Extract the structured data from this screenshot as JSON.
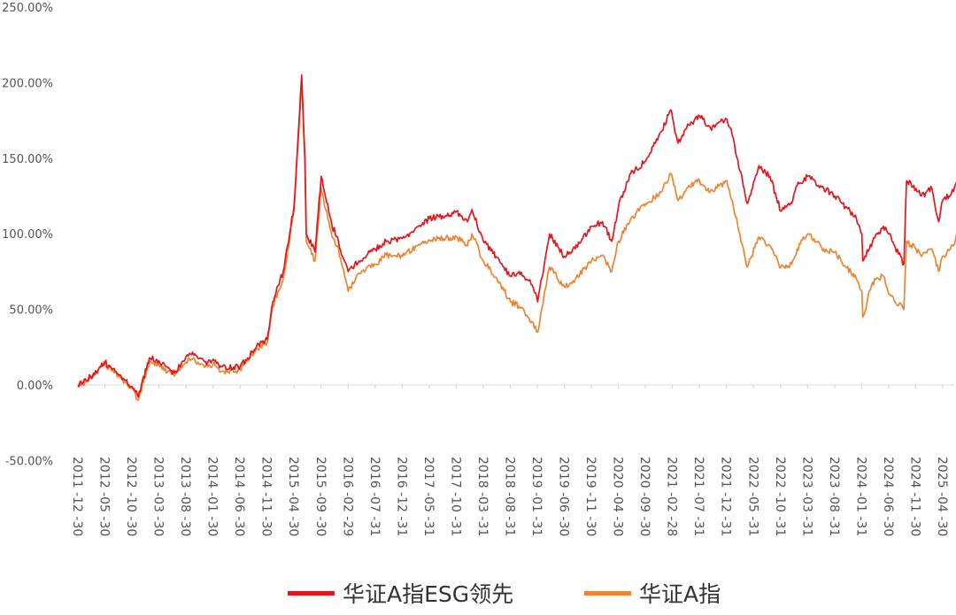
{
  "chart_data": {
    "type": "line",
    "title": "",
    "xlabel": "",
    "ylabel": "",
    "ylim": [
      -50,
      250
    ],
    "yticks": [
      -50,
      0,
      50,
      100,
      150,
      200,
      250
    ],
    "ytick_labels": [
      "-50.00%",
      "0.00%",
      "50.00%",
      "100.00%",
      "150.00%",
      "200.00%",
      "250.00%"
    ],
    "xtick_labels": [
      "2011 -12 -30",
      "2012 -05 -30",
      "2012 -10 -30",
      "2013 -03 -30",
      "2013 -08 -30",
      "2014 -01 -30",
      "2014 -06 -30",
      "2014 -11 -30",
      "2015 -04 -30",
      "2015 -09 -30",
      "2016 -02 -29",
      "2016 -07 -31",
      "2016 -12 -31",
      "2017 -05 -31",
      "2017 -10 -31",
      "2018 -03 -31",
      "2018 -08 -31",
      "2019 -01 -31",
      "2019 -06 -30",
      "2019 -11 -30",
      "2020 -04 -30",
      "2020 -09 -30",
      "2021 -02 -28",
      "2021 -07 -31",
      "2021 -12 -31",
      "2022 -05 -31",
      "2022 -10 -31",
      "2023 -03 -31",
      "2023 -08 -31",
      "2024 -01 -31",
      "2024 -06 -30",
      "2024 -11 -30",
      "2025 -04 -30"
    ],
    "grid": false,
    "legend_position": "bottom",
    "series": [
      {
        "name": "华证A指ESG领先",
        "color": "#e8141c",
        "x": [
          "2011-12-30",
          "2012-02-15",
          "2012-05-30",
          "2012-08-31",
          "2012-10-30",
          "2012-12-04",
          "2013-02-05",
          "2013-03-30",
          "2013-06-27",
          "2013-08-30",
          "2013-09-30",
          "2013-12-30",
          "2014-01-30",
          "2014-03-20",
          "2014-06-30",
          "2014-09-30",
          "2014-11-30",
          "2014-12-31",
          "2015-02-28",
          "2015-04-30",
          "2015-06-12",
          "2015-06-30",
          "2015-07-08",
          "2015-08-26",
          "2015-09-30",
          "2015-11-30",
          "2015-12-31",
          "2016-01-28",
          "2016-02-29",
          "2016-04-30",
          "2016-07-31",
          "2016-09-30",
          "2016-12-31",
          "2017-03-31",
          "2017-05-31",
          "2017-08-31",
          "2017-10-31",
          "2017-12-31",
          "2018-01-26",
          "2018-03-31",
          "2018-06-30",
          "2018-08-31",
          "2018-10-18",
          "2018-12-31",
          "2019-01-31",
          "2019-04-08",
          "2019-06-30",
          "2019-08-31",
          "2019-11-30",
          "2020-01-31",
          "2020-03-23",
          "2020-04-30",
          "2020-07-08",
          "2020-09-30",
          "2020-12-31",
          "2021-02-18",
          "2021-03-31",
          "2021-05-31",
          "2021-07-31",
          "2021-09-30",
          "2021-12-31",
          "2022-01-31",
          "2022-04-26",
          "2022-06-30",
          "2022-08-31",
          "2022-10-31",
          "2022-12-31",
          "2023-01-31",
          "2023-03-31",
          "2023-06-30",
          "2023-08-31",
          "2023-10-31",
          "2023-12-31",
          "2024-01-31",
          "2024-02-05",
          "2024-03-31",
          "2024-05-31",
          "2024-06-30",
          "2024-09-23",
          "2024-10-08",
          "2024-11-30",
          "2024-12-31",
          "2025-02-28",
          "2025-04-07",
          "2025-04-30",
          "2025-06-30",
          "2025-07-31"
        ],
        "values": [
          0,
          3,
          15,
          5,
          -1,
          -8,
          18,
          16,
          8,
          19,
          20,
          15,
          17,
          12,
          12,
          25,
          30,
          55,
          75,
          118,
          205,
          152,
          100,
          88,
          138,
          105,
          98,
          85,
          75,
          82,
          90,
          95,
          97,
          105,
          110,
          112,
          115,
          108,
          116,
          95,
          82,
          72,
          75,
          66,
          55,
          100,
          85,
          90,
          105,
          108,
          95,
          118,
          140,
          148,
          168,
          182,
          160,
          172,
          178,
          170,
          176,
          165,
          120,
          145,
          138,
          115,
          120,
          132,
          138,
          130,
          125,
          118,
          110,
          100,
          82,
          95,
          105,
          100,
          80,
          135,
          130,
          125,
          130,
          108,
          122,
          128,
          138
        ]
      },
      {
        "name": "华证A指",
        "color": "#ee8433",
        "x": [
          "2011-12-30",
          "2012-02-15",
          "2012-05-30",
          "2012-08-31",
          "2012-10-30",
          "2012-12-04",
          "2013-02-05",
          "2013-03-30",
          "2013-06-27",
          "2013-08-30",
          "2013-09-30",
          "2013-12-30",
          "2014-01-30",
          "2014-03-20",
          "2014-06-30",
          "2014-09-30",
          "2014-11-30",
          "2014-12-31",
          "2015-02-28",
          "2015-04-30",
          "2015-06-12",
          "2015-06-30",
          "2015-07-08",
          "2015-08-26",
          "2015-09-30",
          "2015-11-30",
          "2015-12-31",
          "2016-01-28",
          "2016-02-29",
          "2016-04-30",
          "2016-07-31",
          "2016-09-30",
          "2016-12-31",
          "2017-03-31",
          "2017-05-31",
          "2017-08-31",
          "2017-10-31",
          "2017-12-31",
          "2018-01-26",
          "2018-03-31",
          "2018-06-30",
          "2018-08-31",
          "2018-10-18",
          "2018-12-31",
          "2019-01-31",
          "2019-04-08",
          "2019-06-30",
          "2019-08-31",
          "2019-11-30",
          "2020-01-31",
          "2020-03-23",
          "2020-04-30",
          "2020-07-08",
          "2020-09-30",
          "2020-12-31",
          "2021-02-18",
          "2021-03-31",
          "2021-05-31",
          "2021-07-31",
          "2021-09-30",
          "2021-12-31",
          "2022-01-31",
          "2022-04-26",
          "2022-06-30",
          "2022-08-31",
          "2022-10-31",
          "2022-12-31",
          "2023-01-31",
          "2023-03-31",
          "2023-06-30",
          "2023-08-31",
          "2023-10-31",
          "2023-12-31",
          "2024-01-31",
          "2024-02-05",
          "2024-03-31",
          "2024-05-31",
          "2024-06-30",
          "2024-09-23",
          "2024-10-08",
          "2024-11-30",
          "2024-12-31",
          "2025-02-28",
          "2025-04-07",
          "2025-04-30",
          "2025-06-30",
          "2025-07-31"
        ],
        "values": [
          0,
          2,
          14,
          4,
          -2,
          -10,
          15,
          13,
          6,
          15,
          17,
          12,
          14,
          9,
          10,
          24,
          28,
          52,
          70,
          115,
          200,
          148,
          95,
          82,
          130,
          98,
          92,
          78,
          62,
          74,
          80,
          86,
          85,
          93,
          96,
          97,
          98,
          92,
          100,
          82,
          68,
          55,
          52,
          42,
          35,
          78,
          65,
          70,
          82,
          86,
          75,
          95,
          110,
          120,
          128,
          140,
          122,
          132,
          135,
          128,
          135,
          122,
          78,
          98,
          92,
          78,
          80,
          90,
          100,
          90,
          88,
          78,
          70,
          62,
          45,
          68,
          72,
          60,
          50,
          95,
          90,
          85,
          90,
          75,
          85,
          92,
          105
        ]
      }
    ]
  }
}
